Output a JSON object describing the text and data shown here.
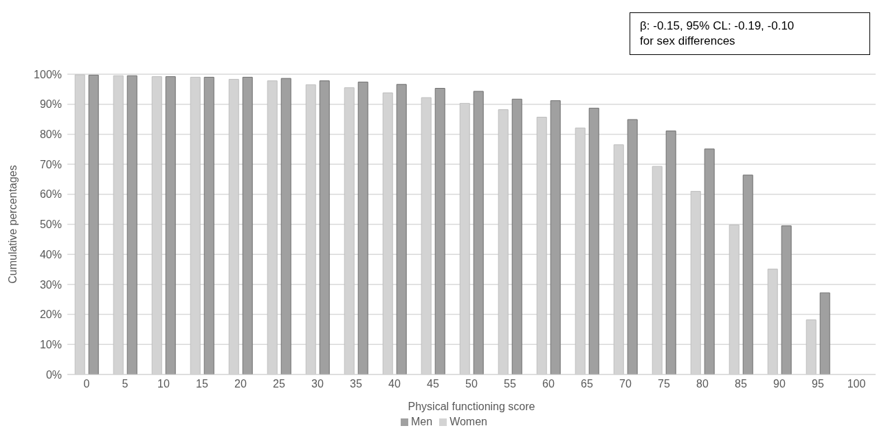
{
  "chart_data": {
    "type": "bar",
    "xlabel": "Physical functioning score",
    "ylabel": "Cumulative percentages",
    "categories": [
      "0",
      "5",
      "10",
      "15",
      "20",
      "25",
      "30",
      "35",
      "40",
      "45",
      "50",
      "55",
      "60",
      "65",
      "70",
      "75",
      "80",
      "85",
      "90",
      "95",
      "100"
    ],
    "series": [
      {
        "name": "Women",
        "color": "#d3d3d3",
        "values": [
          99.8,
          99.5,
          99.2,
          99,
          98.3,
          97.8,
          96.5,
          95.5,
          93.8,
          92.2,
          90.3,
          88.2,
          85.7,
          82.1,
          76.5,
          69.3,
          61,
          49.8,
          35.1,
          18.2,
          null
        ]
      },
      {
        "name": "Men",
        "color": "#a0a0a0",
        "values": [
          99.7,
          99.5,
          99.2,
          99,
          99,
          98.6,
          97.8,
          97.4,
          96.6,
          95.3,
          94.3,
          91.7,
          91.2,
          88.7,
          84.9,
          81.1,
          75.1,
          66.4,
          49.5,
          27.2,
          null
        ]
      }
    ],
    "ylim": [
      0,
      100
    ],
    "yticks": [
      {
        "value": 0,
        "label": "0%"
      },
      {
        "value": 10,
        "label": "10%"
      },
      {
        "value": 20,
        "label": "20%"
      },
      {
        "value": 30,
        "label": "30%"
      },
      {
        "value": 40,
        "label": "40%"
      },
      {
        "value": 50,
        "label": "50%"
      },
      {
        "value": 60,
        "label": "60%"
      },
      {
        "value": 70,
        "label": "70%"
      },
      {
        "value": 80,
        "label": "80%"
      },
      {
        "value": 90,
        "label": "90%"
      },
      {
        "value": 100,
        "label": "100%"
      }
    ],
    "grid": "y",
    "legend": "bottom",
    "annotations": [
      "β: -0.15, 95% CL: -0.19, -0.10\nfor sex differences"
    ]
  }
}
